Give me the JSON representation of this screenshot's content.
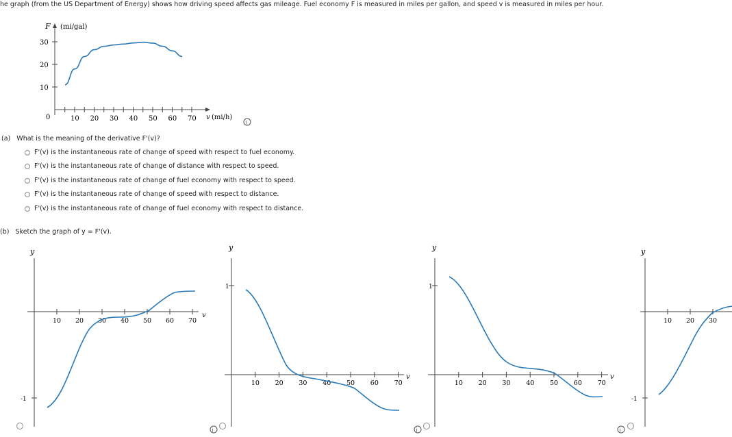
{
  "intro": "he graph (from the US Department of Energy) shows how driving speed affects gas mileage. Fuel economy F is measured in miles per gallon, and speed v is measured in miles per hour.",
  "main_graph": {
    "y_axis_label": "F",
    "y_unit": "(mi/gal)",
    "x_axis_label": "v",
    "x_unit": "(mi/h)",
    "y_ticks": [
      "30",
      "20",
      "10"
    ],
    "origin": "0",
    "x_ticks": [
      "10",
      "20",
      "30",
      "40",
      "50",
      "60",
      "70"
    ]
  },
  "chart_data": {
    "type": "line",
    "xlabel": "v (mi/h)",
    "ylabel": "F (mi/gal)",
    "xlim": [
      0,
      70
    ],
    "ylim": [
      0,
      30
    ],
    "x": [
      10,
      15,
      20,
      25,
      30,
      35,
      40,
      45,
      50,
      55,
      60,
      65,
      70
    ],
    "y": [
      11,
      18,
      23.5,
      26.5,
      28,
      28.6,
      29,
      29.5,
      29.8,
      29.4,
      28,
      26,
      23.5
    ]
  },
  "part_a": {
    "label": "(a)",
    "question": "What is the meaning of the derivative F'(v)?",
    "options": [
      "F'(v) is the instantaneous rate of change of speed with respect to fuel economy.",
      "F'(v) is the instantaneous rate of change of distance with respect to speed.",
      "F'(v) is the instantaneous rate of change of fuel economy with respect to speed.",
      "F'(v) is the instantaneous rate of change of speed with respect to distance.",
      "F'(v) is the instantaneous rate of change of fuel economy with respect to distance."
    ]
  },
  "part_b": {
    "label": "(b)",
    "prompt": "Sketch the graph of y = F'(v).",
    "graphs": [
      {
        "y_label": "y",
        "x_label": "v",
        "tick_1": "",
        "tick_neg1": "-1",
        "x_ticks": [
          "10",
          "20",
          "30",
          "40",
          "50",
          "60",
          "70"
        ]
      },
      {
        "y_label": "y",
        "x_label": "v",
        "tick_1": "1",
        "tick_neg1": "",
        "x_ticks": [
          "10",
          "20",
          "30",
          "40",
          "50",
          "60",
          "70"
        ]
      },
      {
        "y_label": "y",
        "x_label": "v",
        "tick_1": "1",
        "tick_neg1": "",
        "x_ticks": [
          "10",
          "20",
          "30",
          "40",
          "50",
          "60",
          "70"
        ]
      },
      {
        "y_label": "y",
        "x_label": "",
        "tick_1": "",
        "tick_neg1": "-1",
        "x_ticks": [
          "10",
          "20",
          "30"
        ]
      }
    ]
  },
  "icons": {
    "info": "i",
    "info_name": "info-icon"
  },
  "colors": {
    "curve": "#2a7ab8",
    "axis": "#555555",
    "text": "#222222"
  }
}
